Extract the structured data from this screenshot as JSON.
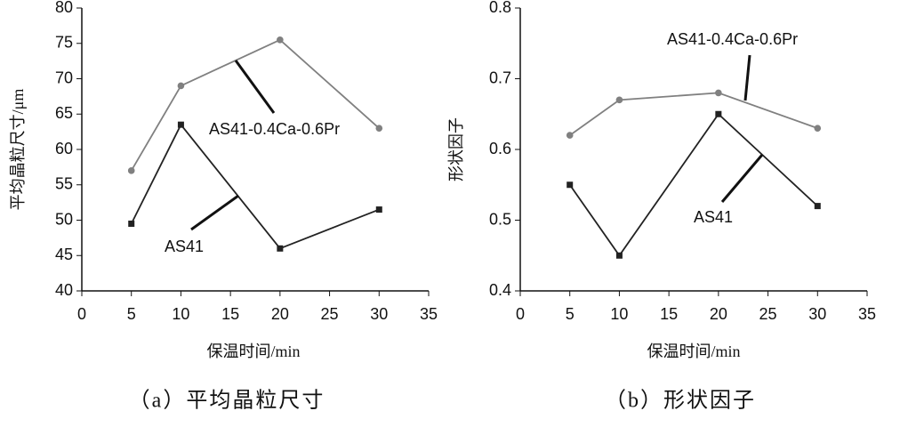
{
  "chart_data": [
    {
      "type": "line",
      "caption": "（a）平均晶粒尺寸",
      "x_label": "保温时间/min",
      "y_label": "平均晶粒尺寸/μm",
      "x": [
        5,
        10,
        20,
        30
      ],
      "xlim": [
        0,
        35
      ],
      "xticks": [
        0,
        5,
        10,
        15,
        20,
        25,
        30,
        35
      ],
      "ylim": [
        40,
        80
      ],
      "yticks": [
        40,
        45,
        50,
        55,
        60,
        65,
        70,
        75,
        80
      ],
      "grid": false,
      "series": [
        {
          "name": "AS41",
          "color": "#222222",
          "marker": "square",
          "values": [
            49.5,
            63.5,
            46,
            51.5
          ]
        },
        {
          "name": "AS41-0.4Ca-0.6Pr",
          "color": "#808080",
          "marker": "circle",
          "values": [
            57,
            69,
            75.5,
            63
          ]
        }
      ]
    },
    {
      "type": "line",
      "caption": "（b）形状因子",
      "x_label": "保温时间/min",
      "y_label": "形状因子",
      "x": [
        5,
        10,
        20,
        30
      ],
      "xlim": [
        0,
        35
      ],
      "xticks": [
        0,
        5,
        10,
        15,
        20,
        25,
        30,
        35
      ],
      "ylim": [
        0.4,
        0.8
      ],
      "yticks": [
        0.4,
        0.5,
        0.6,
        0.7,
        0.8
      ],
      "grid": false,
      "series": [
        {
          "name": "AS41",
          "color": "#222222",
          "marker": "square",
          "values": [
            0.55,
            0.45,
            0.65,
            0.52
          ]
        },
        {
          "name": "AS41-0.4Ca-0.6Pr",
          "color": "#808080",
          "marker": "circle",
          "values": [
            0.62,
            0.67,
            0.68,
            0.63
          ]
        }
      ]
    }
  ]
}
